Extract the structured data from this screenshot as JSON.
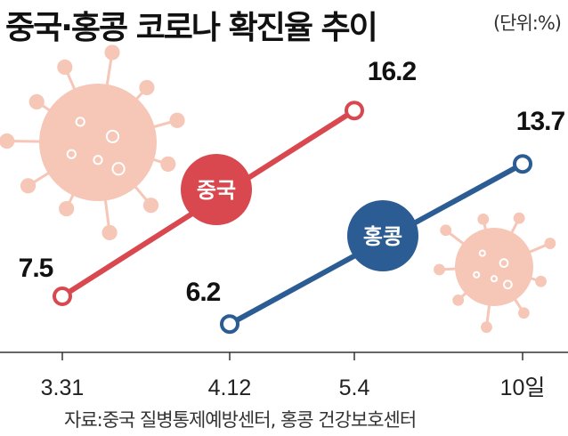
{
  "title": "중국·홍콩 코로나 확진율 추이",
  "unit": "(단위:%)",
  "source": "자료:중국 질병통제예방센터, 홍콩 건강보호센터",
  "colors": {
    "china": "#d9474f",
    "hongkong": "#2b5c93",
    "virus": "#f6c6b6",
    "axis": "#333333"
  },
  "decorations": [
    "virus-icon",
    "virus-icon"
  ],
  "chart_data": {
    "type": "line",
    "title": "중국·홍콩 코로나 확진율 추이",
    "unit": "(단위:%)",
    "categories": [
      "3.31",
      "4.12",
      "5.4",
      "10일"
    ],
    "series": [
      {
        "name": "중국",
        "points": [
          {
            "x": "3.31",
            "y": 7.5
          },
          {
            "x": "5.4",
            "y": 16.2
          }
        ]
      },
      {
        "name": "홍콩",
        "points": [
          {
            "x": "4.12",
            "y": 6.2
          },
          {
            "x": "10일",
            "y": 13.7
          }
        ]
      }
    ],
    "grid": false,
    "legend": "inline labels on lines"
  }
}
